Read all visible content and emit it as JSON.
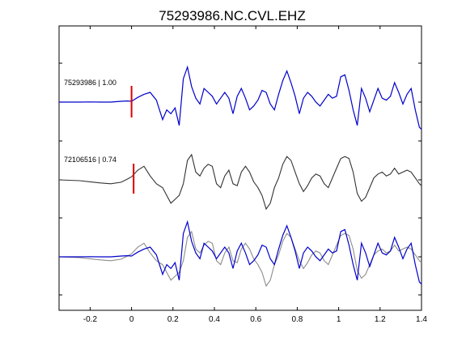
{
  "chart_data": {
    "type": "line",
    "title": "75293986.NC.CVL.EHZ",
    "xlabel": "",
    "ylabel": "",
    "xlim": [
      -0.35,
      1.4
    ],
    "x_ticks": [
      -0.2,
      0,
      0.2,
      0.4,
      0.6,
      0.8,
      1,
      1.2,
      1.4
    ],
    "x_tick_labels": [
      "-0.2",
      "0",
      "0.2",
      "0.4",
      "0.6",
      "0.8",
      "1",
      "1.2",
      "1.4"
    ],
    "grid": false,
    "pick_time": 0,
    "colors": {
      "primary": "#0000cc",
      "secondary": "#333333",
      "overlay_secondary": "#8c8c8c",
      "pick": "#dd0000"
    },
    "traces": [
      {
        "label": "75293986 | 1.00",
        "pick_x": 0,
        "x": [
          -0.35,
          -0.3,
          -0.25,
          -0.2,
          -0.15,
          -0.1,
          -0.05,
          -0.02,
          0,
          0.03,
          0.06,
          0.09,
          0.12,
          0.15,
          0.17,
          0.19,
          0.21,
          0.23,
          0.25,
          0.27,
          0.29,
          0.31,
          0.33,
          0.35,
          0.37,
          0.39,
          0.41,
          0.43,
          0.45,
          0.47,
          0.49,
          0.51,
          0.53,
          0.55,
          0.57,
          0.59,
          0.61,
          0.63,
          0.65,
          0.67,
          0.69,
          0.71,
          0.73,
          0.75,
          0.77,
          0.79,
          0.81,
          0.83,
          0.85,
          0.87,
          0.89,
          0.91,
          0.93,
          0.95,
          0.97,
          0.99,
          1.01,
          1.03,
          1.05,
          1.07,
          1.09,
          1.11,
          1.13,
          1.15,
          1.17,
          1.19,
          1.21,
          1.23,
          1.25,
          1.27,
          1.29,
          1.31,
          1.33,
          1.35,
          1.37,
          1.39,
          1.4
        ],
        "y": [
          0,
          0,
          0,
          0.005,
          0,
          0,
          0.02,
          0.03,
          0.02,
          0.12,
          0.2,
          0.25,
          0.05,
          -0.45,
          -0.2,
          -0.3,
          -0.15,
          -0.6,
          0.6,
          0.9,
          0.4,
          0.1,
          -0.05,
          0.35,
          0.25,
          0.15,
          -0.05,
          0.1,
          0.25,
          0.1,
          -0.3,
          0.15,
          0.35,
          0.1,
          -0.2,
          -0.1,
          0.05,
          0.3,
          0.25,
          -0.05,
          -0.2,
          0.2,
          0.55,
          0.8,
          0.5,
          0.15,
          -0.3,
          0.1,
          0.25,
          0.15,
          0,
          -0.1,
          0.05,
          0.2,
          0.1,
          0.15,
          0.65,
          0.7,
          0.3,
          -0.2,
          -0.6,
          0.35,
          0.1,
          -0.25,
          0.05,
          0.35,
          0.1,
          0.05,
          0.15,
          0.5,
          0.25,
          -0.05,
          0.2,
          0.35,
          -0.2,
          -0.65,
          -0.7
        ]
      },
      {
        "label": "72106516 | 0.74",
        "pick_x": 0.01,
        "x": [
          -0.35,
          -0.3,
          -0.25,
          -0.2,
          -0.15,
          -0.1,
          -0.05,
          -0.02,
          0,
          0.03,
          0.06,
          0.09,
          0.12,
          0.15,
          0.17,
          0.19,
          0.21,
          0.23,
          0.25,
          0.27,
          0.29,
          0.31,
          0.33,
          0.35,
          0.37,
          0.39,
          0.41,
          0.43,
          0.45,
          0.47,
          0.49,
          0.51,
          0.53,
          0.55,
          0.57,
          0.59,
          0.61,
          0.63,
          0.65,
          0.67,
          0.69,
          0.71,
          0.73,
          0.75,
          0.77,
          0.79,
          0.81,
          0.83,
          0.85,
          0.87,
          0.89,
          0.91,
          0.93,
          0.95,
          0.97,
          0.99,
          1.01,
          1.03,
          1.05,
          1.07,
          1.09,
          1.11,
          1.13,
          1.15,
          1.17,
          1.19,
          1.21,
          1.23,
          1.25,
          1.27,
          1.29,
          1.31,
          1.33,
          1.35,
          1.37,
          1.39,
          1.4
        ],
        "y": [
          0,
          -0.01,
          -0.02,
          -0.05,
          -0.08,
          -0.1,
          -0.06,
          0.02,
          0.08,
          0.25,
          0.35,
          0.1,
          -0.1,
          -0.2,
          -0.4,
          -0.6,
          -0.5,
          -0.4,
          -0.1,
          0.5,
          0.65,
          0.2,
          0.1,
          0.3,
          0.4,
          0.35,
          -0.1,
          -0.2,
          0.1,
          0.25,
          -0.1,
          -0.15,
          0.2,
          0.35,
          0.2,
          -0.05,
          -0.2,
          -0.4,
          -0.75,
          -0.6,
          -0.2,
          0.05,
          0.4,
          0.6,
          0.5,
          0.2,
          -0.1,
          -0.3,
          -0.15,
          0.05,
          0.15,
          0.1,
          -0.1,
          -0.2,
          0.05,
          0.3,
          0.55,
          0.6,
          0.55,
          0.2,
          -0.35,
          -0.55,
          -0.45,
          -0.2,
          0.05,
          0.15,
          0.2,
          0.1,
          0.15,
          0.3,
          0.15,
          0.2,
          0.25,
          0.2,
          0.05,
          -0.1,
          -0.15
        ]
      }
    ],
    "overlay": {
      "series": [
        "75293986 | 1.00",
        "72106516 | 0.74"
      ]
    }
  }
}
